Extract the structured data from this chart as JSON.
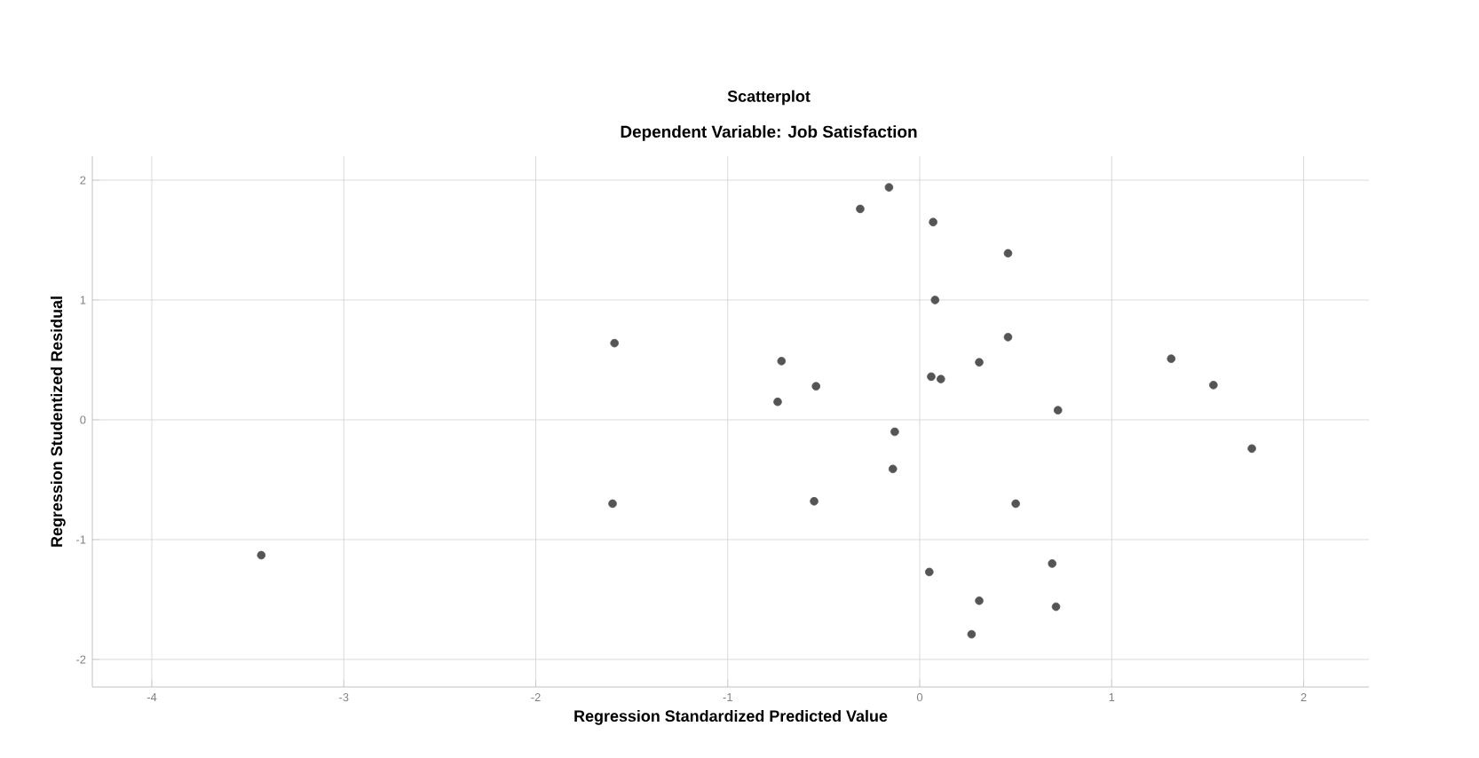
{
  "chart_data": {
    "type": "scatter",
    "title": "Scatterplot",
    "subtitle": "Dependent Variable: Job Satisfaction",
    "xlabel": "Regression Standardized Predicted Value",
    "ylabel": "Regression Studentized Residual",
    "x": [
      -3.43,
      -1.59,
      -1.6,
      -0.16,
      -0.31,
      0.07,
      0.46,
      0.08,
      0.46,
      -0.72,
      0.31,
      1.31,
      -0.54,
      1.53,
      0.06,
      0.11,
      -0.74,
      0.72,
      -0.13,
      1.73,
      -0.14,
      -0.55,
      0.5,
      0.69,
      0.05,
      0.71,
      0.31,
      0.27
    ],
    "values": [
      -1.13,
      0.64,
      -0.7,
      1.94,
      1.76,
      1.65,
      1.39,
      1.0,
      0.69,
      0.49,
      0.48,
      0.51,
      0.28,
      0.29,
      0.36,
      0.34,
      0.15,
      0.08,
      -0.1,
      -0.24,
      -0.41,
      -0.68,
      -0.7,
      -1.2,
      -1.27,
      -1.56,
      -1.51,
      -1.79
    ],
    "color": "#555555",
    "marker": "circle",
    "xlim": [
      -4.31,
      2.34
    ],
    "ylim": [
      -2.23,
      2.2
    ],
    "xticks": [
      -4,
      -3,
      -2,
      -1,
      0,
      1,
      2
    ],
    "yticks": [
      -2,
      -1,
      0,
      1,
      2
    ],
    "grid": true
  }
}
